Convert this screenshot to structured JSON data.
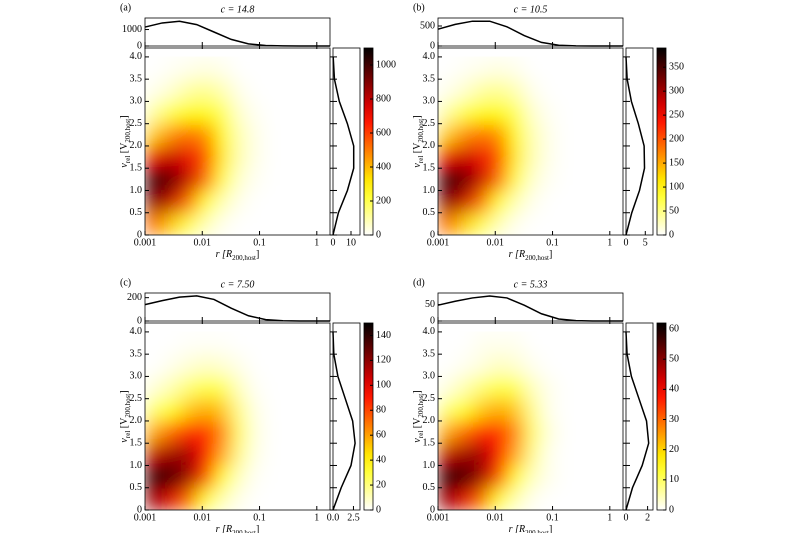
{
  "chart_data": [
    {
      "type": "heatmap",
      "label": "(a)",
      "title": "c = 14.8",
      "xlabel": [
        {
          "t": "r [R"
        },
        {
          "t": "200,host",
          "sub": true
        },
        {
          "t": "]"
        }
      ],
      "ylabel": [
        {
          "t": "v"
        },
        {
          "t": "rel",
          "sub": true
        },
        {
          "t": " [V"
        },
        {
          "t": "200,host",
          "sub": true
        },
        {
          "t": "]"
        }
      ],
      "xscale": "log",
      "xlim": [
        0.001,
        1.7
      ],
      "xticks": [
        0.001,
        0.01,
        0.1,
        1
      ],
      "ylim": [
        0,
        4.2
      ],
      "yticks": [
        0,
        0.5,
        {
          "value": 1,
          "label": "1.0"
        },
        1.5,
        {
          "value": 2,
          "label": "2.0"
        },
        2.5,
        {
          "value": 3,
          "label": "3.0"
        },
        3.5,
        {
          "value": 4,
          "label": "4.0"
        }
      ],
      "colormap": "hot_r",
      "clim": [
        0,
        1100
      ],
      "cticks": [
        0,
        200,
        400,
        600,
        800,
        1000
      ],
      "x_edges": [
        0.001,
        0.002,
        0.004,
        0.008,
        0.016,
        0.032,
        0.064,
        0.128,
        0.256
      ],
      "y_edges": [
        0,
        0.5,
        1,
        1.5,
        2,
        2.5,
        3,
        3.5,
        4
      ],
      "z": [
        [
          525,
          368,
          210,
          84,
          21,
          0,
          0,
          0
        ],
        [
          893,
          788,
          525,
          263,
          84,
          21,
          0,
          0
        ],
        [
          1050,
          945,
          788,
          525,
          210,
          53,
          11,
          0
        ],
        [
          735,
          788,
          735,
          578,
          315,
          84,
          21,
          0
        ],
        [
          368,
          473,
          525,
          473,
          294,
          84,
          21,
          0
        ],
        [
          105,
          210,
          294,
          294,
          189,
          53,
          11,
          0
        ],
        [
          21,
          53,
          105,
          126,
          84,
          21,
          0,
          0
        ],
        [
          0,
          11,
          21,
          32,
          21,
          0,
          0,
          0
        ]
      ],
      "top_ylim": [
        0,
        1700
      ],
      "top_yticks": [
        0,
        1000
      ],
      "marginal_x": {
        "x": [
          0.001,
          0.002,
          0.004,
          0.008,
          0.016,
          0.032,
          0.064,
          0.128,
          0.256,
          0.5,
          1,
          1.7
        ],
        "values": [
          1150,
          1400,
          1500,
          1300,
          850,
          400,
          130,
          30,
          5,
          0,
          0,
          0
        ]
      },
      "right_xlim": [
        0,
        15
      ],
      "right_xticks": [
        0,
        10
      ],
      "marginal_y": {
        "y": [
          0,
          0.5,
          1,
          1.5,
          2,
          2.5,
          3,
          3.5,
          4
        ],
        "values": [
          0,
          3,
          8,
          11.5,
          11.5,
          8,
          3.5,
          0.8,
          0.1
        ]
      }
    },
    {
      "type": "heatmap",
      "label": "(b)",
      "title": "c = 10.5",
      "xlabel": [
        {
          "t": "r [R"
        },
        {
          "t": "200,host",
          "sub": true
        },
        {
          "t": "]"
        }
      ],
      "ylabel": [
        {
          "t": "v"
        },
        {
          "t": "rel",
          "sub": true
        },
        {
          "t": " [V"
        },
        {
          "t": "200,host",
          "sub": true
        },
        {
          "t": "]"
        }
      ],
      "xscale": "log",
      "xlim": [
        0.001,
        1.7
      ],
      "xticks": [
        0.001,
        0.01,
        0.1,
        1
      ],
      "ylim": [
        0,
        4.2
      ],
      "yticks": [
        0,
        0.5,
        {
          "value": 1,
          "label": "1.0"
        },
        1.5,
        {
          "value": 2,
          "label": "2.0"
        },
        2.5,
        {
          "value": 3,
          "label": "3.0"
        },
        3.5,
        {
          "value": 4,
          "label": "4.0"
        }
      ],
      "colormap": "hot_r",
      "clim": [
        0,
        390
      ],
      "cticks": [
        0,
        50,
        100,
        150,
        200,
        250,
        300,
        350
      ],
      "x_edges": [
        0.001,
        0.002,
        0.004,
        0.008,
        0.016,
        0.032,
        0.064,
        0.128,
        0.256
      ],
      "y_edges": [
        0,
        0.5,
        1,
        1.5,
        2,
        2.5,
        3,
        3.5,
        4
      ],
      "z": [
        [
          185,
          130,
          74,
          30,
          7,
          0,
          0,
          0
        ],
        [
          315,
          278,
          185,
          93,
          30,
          7,
          0,
          0
        ],
        [
          370,
          333,
          278,
          185,
          74,
          19,
          4,
          0
        ],
        [
          259,
          278,
          259,
          204,
          111,
          30,
          7,
          0
        ],
        [
          130,
          167,
          185,
          167,
          104,
          30,
          7,
          0
        ],
        [
          37,
          74,
          104,
          104,
          67,
          19,
          4,
          0
        ],
        [
          7,
          19,
          37,
          44,
          30,
          7,
          0,
          0
        ],
        [
          0,
          4,
          7,
          11,
          7,
          0,
          0,
          0
        ]
      ],
      "top_ylim": [
        0,
        700
      ],
      "top_yticks": [
        0,
        500
      ],
      "marginal_x": {
        "x": [
          0.001,
          0.002,
          0.004,
          0.008,
          0.016,
          0.032,
          0.064,
          0.128,
          0.256,
          0.5,
          1,
          1.7
        ],
        "values": [
          420,
          540,
          620,
          620,
          480,
          260,
          90,
          20,
          3,
          0,
          0,
          0
        ]
      },
      "right_xlim": [
        0,
        7
      ],
      "right_xticks": [
        0,
        5
      ],
      "marginal_y": {
        "y": [
          0,
          0.5,
          1,
          1.5,
          2,
          2.5,
          3,
          3.5,
          4
        ],
        "values": [
          0,
          1.5,
          3.5,
          4.8,
          4.7,
          3.2,
          1.4,
          0.3,
          0
        ]
      }
    },
    {
      "type": "heatmap",
      "label": "(c)",
      "title": "c = 7.50",
      "xlabel": [
        {
          "t": "r [R"
        },
        {
          "t": "200,host",
          "sub": true
        },
        {
          "t": "]"
        }
      ],
      "ylabel": [
        {
          "t": "v"
        },
        {
          "t": "rel",
          "sub": true
        },
        {
          "t": " [V"
        },
        {
          "t": "200,host",
          "sub": true
        },
        {
          "t": "]"
        }
      ],
      "xscale": "log",
      "xlim": [
        0.001,
        1.7
      ],
      "xticks": [
        0.001,
        0.01,
        0.1,
        1
      ],
      "ylim": [
        0,
        4.2
      ],
      "yticks": [
        0,
        0.5,
        {
          "value": 1,
          "label": "1.0"
        },
        1.5,
        {
          "value": 2,
          "label": "2.0"
        },
        2.5,
        {
          "value": 3,
          "label": "3.0"
        },
        3.5,
        {
          "value": 4,
          "label": "4.0"
        }
      ],
      "colormap": "hot_r",
      "clim": [
        0,
        150
      ],
      "cticks": [
        0,
        20,
        40,
        60,
        80,
        100,
        120,
        140
      ],
      "x_edges": [
        0.001,
        0.002,
        0.004,
        0.008,
        0.016,
        0.032,
        0.064,
        0.128,
        0.256
      ],
      "y_edges": [
        0,
        0.5,
        1,
        1.5,
        2,
        2.5,
        3,
        3.5,
        4
      ],
      "z": [
        [
          116,
          102,
          73,
          36,
          12,
          3,
          0,
          0
        ],
        [
          145,
          138,
          116,
          80,
          36,
          9,
          1,
          0
        ],
        [
          109,
          116,
          116,
          94,
          58,
          17,
          3,
          0
        ],
        [
          58,
          73,
          87,
          87,
          65,
          22,
          4,
          0
        ],
        [
          22,
          36,
          51,
          58,
          51,
          17,
          3,
          0
        ],
        [
          6,
          12,
          22,
          29,
          26,
          9,
          1,
          0
        ],
        [
          0,
          3,
          6,
          9,
          7,
          3,
          0,
          0
        ],
        [
          0,
          0,
          1,
          1,
          1,
          0,
          0,
          0
        ]
      ],
      "top_ylim": [
        0,
        240
      ],
      "top_yticks": [
        0,
        200
      ],
      "marginal_x": {
        "x": [
          0.001,
          0.002,
          0.004,
          0.008,
          0.016,
          0.032,
          0.064,
          0.128,
          0.256,
          0.5,
          1,
          1.7
        ],
        "values": [
          140,
          175,
          205,
          215,
          185,
          110,
          45,
          12,
          2,
          0,
          0,
          0
        ]
      },
      "right_xlim": [
        0,
        3.3
      ],
      "right_xticks": [
        {
          "value": 0,
          "label": "0.0"
        },
        2.5
      ],
      "marginal_y": {
        "y": [
          0,
          0.5,
          1,
          1.5,
          2,
          2.5,
          3,
          3.5,
          4
        ],
        "values": [
          0,
          1,
          2.2,
          2.7,
          2.4,
          1.5,
          0.6,
          0.1,
          0
        ]
      }
    },
    {
      "type": "heatmap",
      "label": "(d)",
      "title": "c = 5.33",
      "xlabel": [
        {
          "t": "r [R"
        },
        {
          "t": "200,host",
          "sub": true
        },
        {
          "t": "]"
        }
      ],
      "ylabel": [
        {
          "t": "v"
        },
        {
          "t": "rel",
          "sub": true
        },
        {
          "t": " [V"
        },
        {
          "t": "200,host",
          "sub": true
        },
        {
          "t": "]"
        }
      ],
      "xscale": "log",
      "xlim": [
        0.001,
        1.7
      ],
      "xticks": [
        0.001,
        0.01,
        0.1,
        1
      ],
      "ylim": [
        0,
        4.2
      ],
      "yticks": [
        0,
        0.5,
        {
          "value": 1,
          "label": "1.0"
        },
        1.5,
        {
          "value": 2,
          "label": "2.0"
        },
        2.5,
        {
          "value": 3,
          "label": "3.0"
        },
        3.5,
        {
          "value": 4,
          "label": "4.0"
        }
      ],
      "colormap": "hot_r",
      "clim": [
        0,
        62
      ],
      "cticks": [
        0,
        10,
        20,
        30,
        40,
        50,
        60
      ],
      "x_edges": [
        0.001,
        0.002,
        0.004,
        0.008,
        0.016,
        0.032,
        0.064,
        0.128,
        0.256
      ],
      "y_edges": [
        0,
        0.5,
        1,
        1.5,
        2,
        2.5,
        3,
        3.5,
        4
      ],
      "z": [
        [
          48,
          42,
          30,
          15,
          5,
          1,
          0,
          0
        ],
        [
          60,
          57,
          48,
          33,
          15,
          4,
          1,
          0
        ],
        [
          45,
          48,
          48,
          39,
          24,
          7,
          1,
          0
        ],
        [
          24,
          30,
          36,
          36,
          27,
          9,
          2,
          0
        ],
        [
          9,
          15,
          21,
          24,
          21,
          7,
          1,
          0
        ],
        [
          2,
          5,
          9,
          12,
          11,
          4,
          1,
          0
        ],
        [
          0,
          1,
          2,
          4,
          3,
          1,
          0,
          0
        ],
        [
          0,
          0,
          1,
          1,
          1,
          0,
          0,
          0
        ]
      ],
      "top_ylim": [
        0,
        85
      ],
      "top_yticks": [
        0,
        50
      ],
      "marginal_x": {
        "x": [
          0.001,
          0.002,
          0.004,
          0.008,
          0.016,
          0.032,
          0.064,
          0.128,
          0.256,
          0.5,
          1,
          1.7
        ],
        "values": [
          48,
          60,
          70,
          76,
          70,
          48,
          22,
          6,
          1,
          0,
          0,
          0
        ]
      },
      "right_xlim": [
        0,
        2.5
      ],
      "right_xticks": [
        0,
        2
      ],
      "marginal_y": {
        "y": [
          0,
          0.5,
          1,
          1.5,
          2,
          2.5,
          3,
          3.5,
          4
        ],
        "values": [
          0,
          0.6,
          1.5,
          2.1,
          1.9,
          1.2,
          0.5,
          0.1,
          0
        ]
      }
    }
  ]
}
